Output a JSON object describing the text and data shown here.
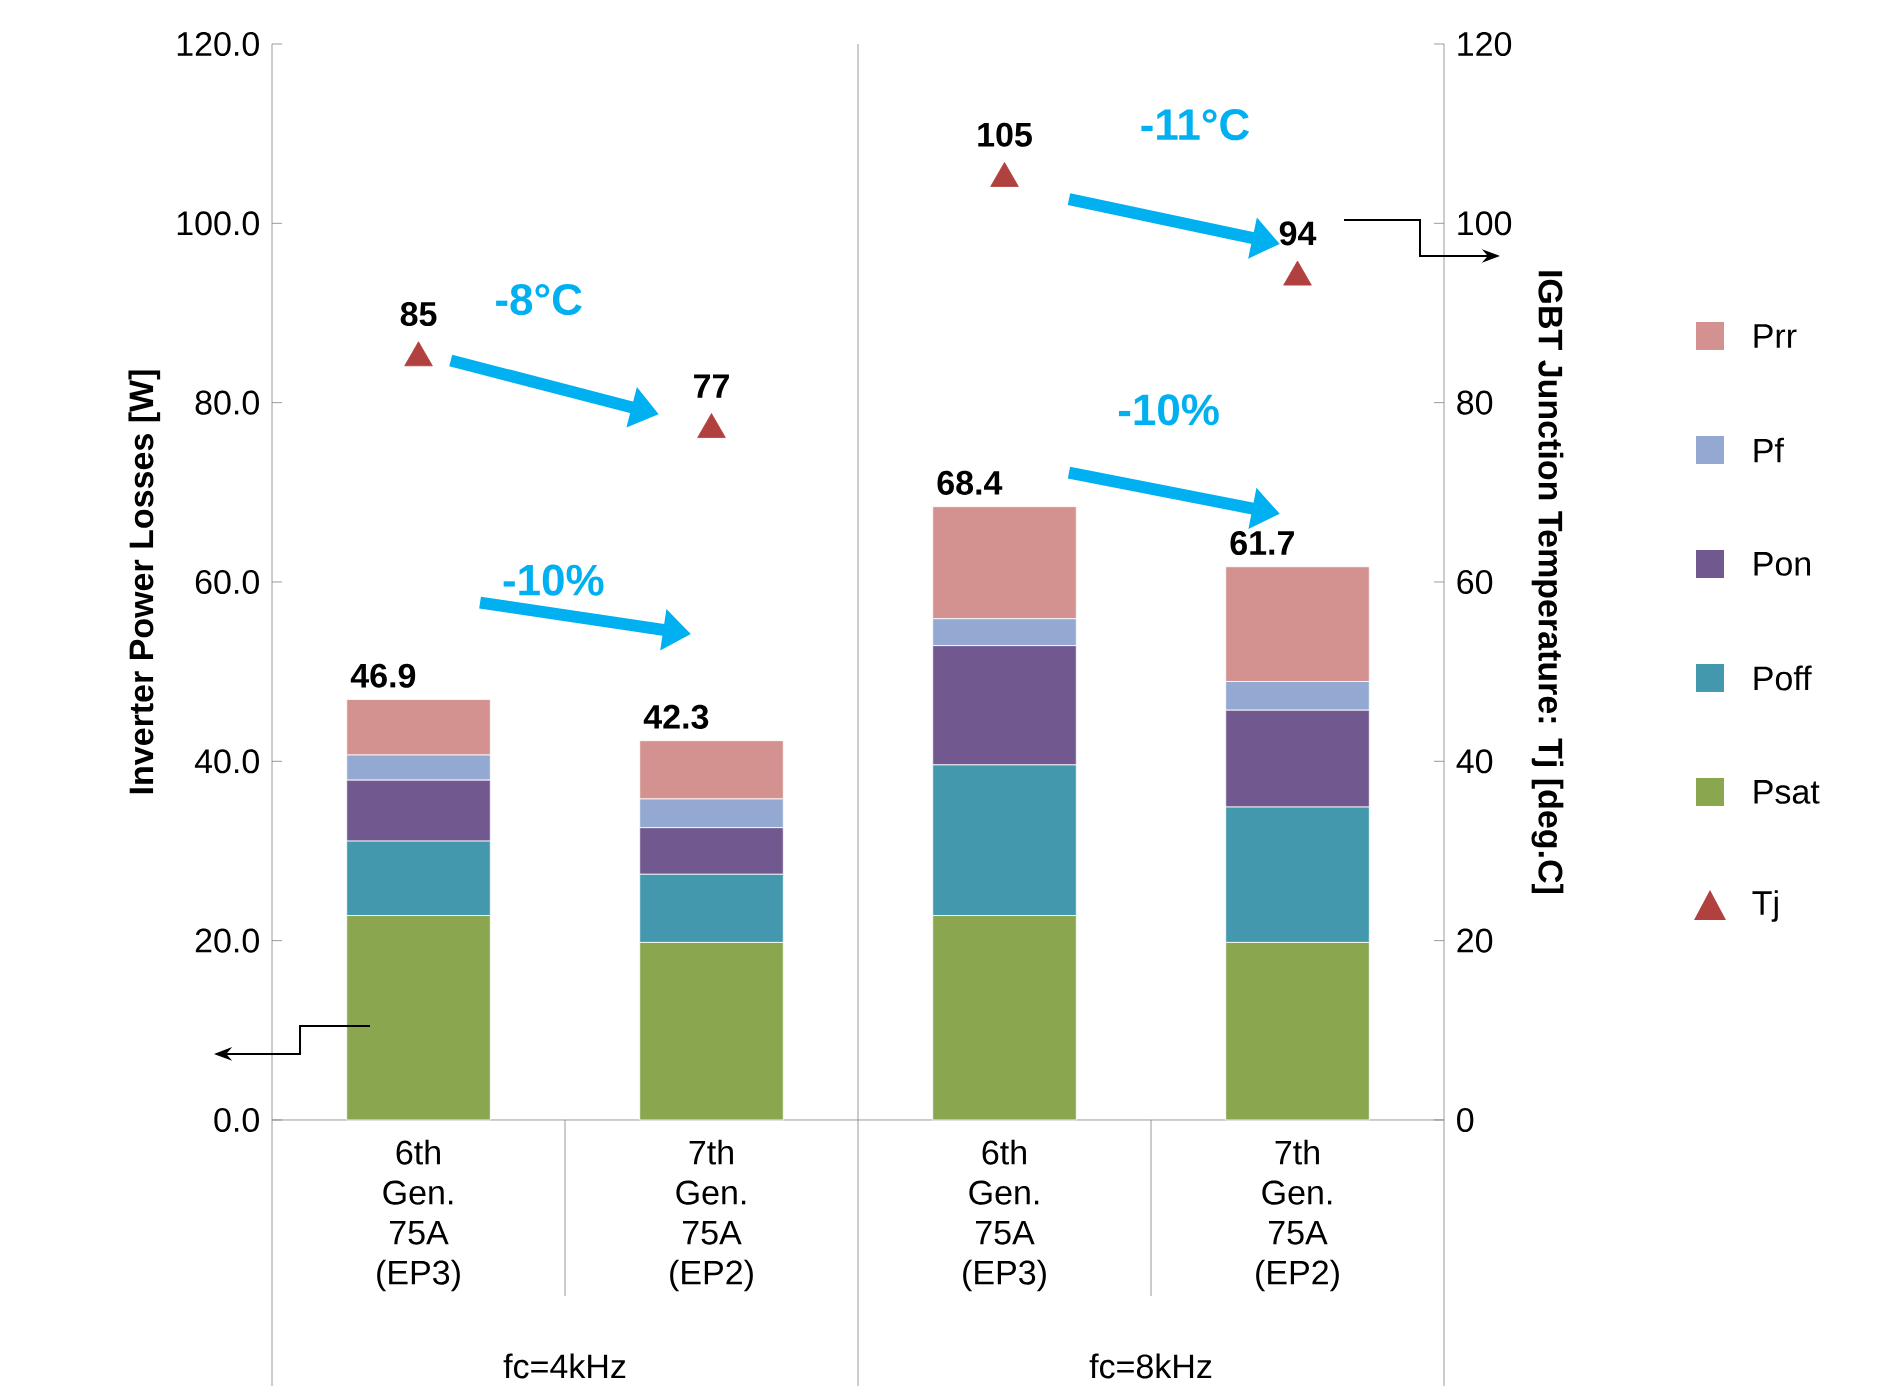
{
  "chart_data": {
    "type": "bar",
    "stacked": true,
    "categories": [
      "6th Gen. 75A (EP3)",
      "7th Gen. 75A (EP2)",
      "6th Gen. 75A (EP3)",
      "7th Gen. 75A (EP2)"
    ],
    "series": [
      {
        "name": "Psat",
        "color": "#8aa64f",
        "values": [
          22.8,
          19.8,
          22.8,
          19.8
        ]
      },
      {
        "name": "Poff",
        "color": "#4398ae",
        "values": [
          8.3,
          7.6,
          16.8,
          15.1
        ]
      },
      {
        "name": "Pon",
        "color": "#71588f",
        "values": [
          6.8,
          5.2,
          13.3,
          10.8
        ]
      },
      {
        "name": "Pf",
        "color": "#93a9d1",
        "values": [
          2.8,
          3.2,
          3.0,
          3.2
        ]
      },
      {
        "name": "Prr",
        "color": "#d39290",
        "values": [
          6.2,
          6.5,
          12.5,
          12.8
        ]
      },
      {
        "name": "Tj",
        "type": "scatter",
        "axis": "y2",
        "marker": "triangle",
        "color": "#b0413e",
        "values": [
          85,
          77,
          105,
          94
        ],
        "value_labels": [
          "85",
          "77",
          "105",
          "94"
        ]
      }
    ],
    "totals": [
      "46.9",
      "42.3",
      "68.4",
      "61.7"
    ],
    "ylabel": "Inverter Power Losses [W]",
    "y2label": "IGBT Junction Temperature: Tj [deg.C]",
    "ylim": [
      0,
      120
    ],
    "yticks": [
      {
        "value": 0,
        "label": "0.0"
      },
      {
        "value": 20,
        "label": "20.0"
      },
      {
        "value": 40,
        "label": "40.0"
      },
      {
        "value": 60,
        "label": "60.0"
      },
      {
        "value": 80,
        "label": "80.0"
      },
      {
        "value": 100,
        "label": "100.0"
      },
      {
        "value": 120,
        "label": "120.0"
      }
    ],
    "y2lim": [
      0,
      120
    ],
    "y2ticks": [
      0,
      20,
      40,
      60,
      80,
      100,
      120
    ],
    "legend": "right",
    "annotations": [
      "fc=4kHz",
      "fc=8kHz",
      "-8°C",
      "-10%",
      "-11°C",
      "-10%"
    ]
  }
}
